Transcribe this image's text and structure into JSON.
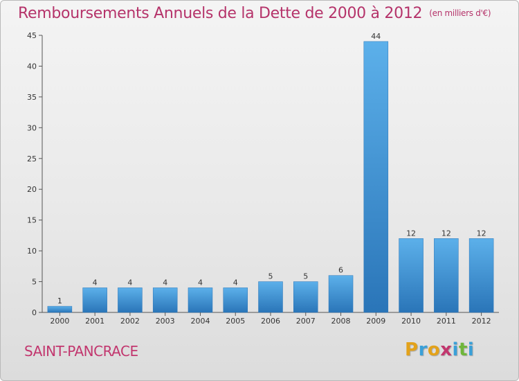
{
  "header": {
    "title": "Remboursements Annuels de la Dette de 2000 à 2012",
    "unit": "(en milliers d'€)"
  },
  "footer": {
    "commune": "SAINT-PANCRACE",
    "logo": [
      "P",
      "r",
      "o",
      "x",
      "i",
      "t",
      "i"
    ],
    "logo_colors": [
      "#e3a21a",
      "#3aa0d8",
      "#e3a21a",
      "#c2366e",
      "#3aa0d8",
      "#6fb63a",
      "#3aa0d8"
    ]
  },
  "colors": {
    "bar": "#3d93d6",
    "bar_light": "#5cb0ea",
    "bar_dark": "#2a75b8"
  },
  "chart_data": {
    "type": "bar",
    "title": "Remboursements Annuels de la Dette de 2000 à 2012",
    "categories": [
      "2000",
      "2001",
      "2002",
      "2003",
      "2004",
      "2005",
      "2006",
      "2007",
      "2008",
      "2009",
      "2010",
      "2011",
      "2012"
    ],
    "values": [
      1,
      4,
      4,
      4,
      4,
      4,
      5,
      5,
      6,
      44,
      12,
      12,
      12
    ],
    "data_labels": [
      "1",
      "4",
      "4",
      "4",
      "4",
      "4",
      "5",
      "5",
      "6",
      "44",
      "12",
      "12",
      "12"
    ],
    "ylim": [
      0,
      45
    ],
    "yticks": [
      0,
      5,
      10,
      15,
      20,
      25,
      30,
      35,
      40,
      45
    ],
    "grid": false
  }
}
